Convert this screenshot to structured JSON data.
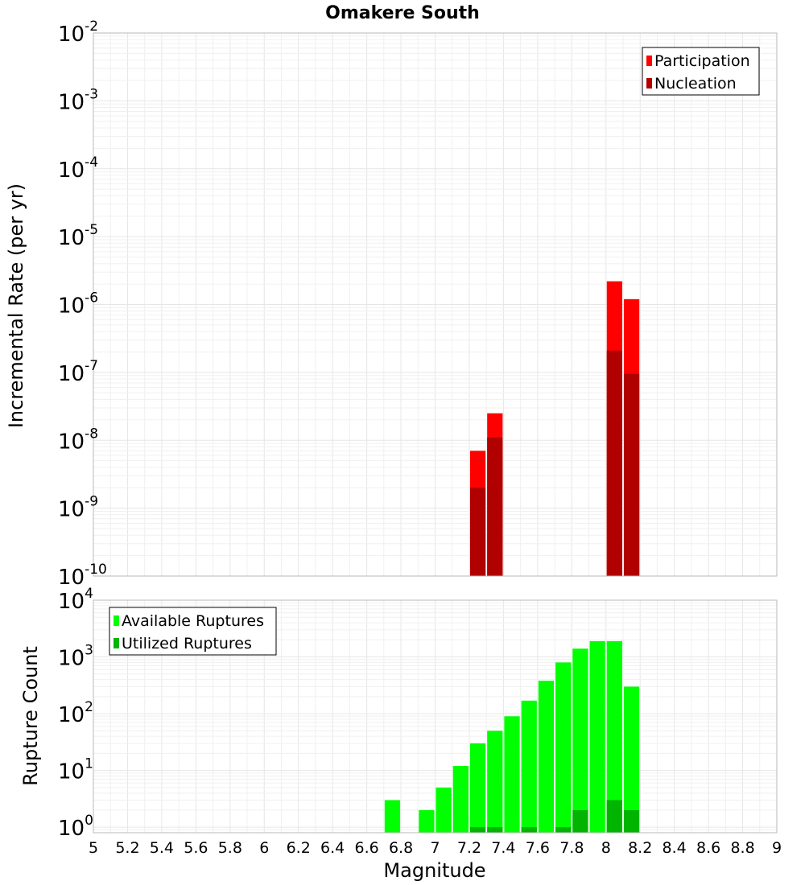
{
  "chart_data": [
    {
      "type": "bar",
      "title": "Omakere South",
      "xlabel": "",
      "ylabel": "Incremental Rate (per yr)",
      "y_scale": "log",
      "ylim": [
        1e-10,
        0.01
      ],
      "xlim": [
        5,
        9
      ],
      "y_tick_exponents": [
        "-10",
        "-9",
        "-8",
        "-7",
        "-6",
        "-5",
        "-4",
        "-3",
        "-2"
      ],
      "grid": true,
      "legend_position": "top-right",
      "bar_width": 0.1,
      "series": [
        {
          "name": "Participation",
          "color": "#ff0000",
          "points": [
            {
              "x": 7.25,
              "y": 7e-09
            },
            {
              "x": 7.35,
              "y": 2.5e-08
            },
            {
              "x": 8.05,
              "y": 2.2e-06
            },
            {
              "x": 8.15,
              "y": 1.2e-06
            }
          ]
        },
        {
          "name": "Nucleation",
          "color": "#b00000",
          "points": [
            {
              "x": 7.25,
              "y": 2e-09
            },
            {
              "x": 7.35,
              "y": 1.1e-08
            },
            {
              "x": 8.05,
              "y": 2.1e-07
            },
            {
              "x": 8.15,
              "y": 9.5e-08
            }
          ]
        }
      ]
    },
    {
      "type": "bar",
      "title": "",
      "xlabel": "Magnitude",
      "ylabel": "Rupture Count",
      "y_scale": "log",
      "ylim": [
        0.8,
        10000
      ],
      "xlim": [
        5,
        9
      ],
      "y_tick_exponents": [
        "0",
        "1",
        "2",
        "3",
        "4"
      ],
      "x_ticks": [
        "5",
        "5.2",
        "5.4",
        "5.6",
        "5.8",
        "6",
        "6.2",
        "6.4",
        "6.6",
        "6.8",
        "7",
        "7.2",
        "7.4",
        "7.6",
        "7.8",
        "8",
        "8.2",
        "8.4",
        "8.6",
        "8.8",
        "9"
      ],
      "grid": true,
      "legend_position": "top-left",
      "bar_width": 0.1,
      "series": [
        {
          "name": "Available Ruptures",
          "color": "#00ff00",
          "points": [
            {
              "x": 6.75,
              "y": 3
            },
            {
              "x": 6.95,
              "y": 2
            },
            {
              "x": 7.05,
              "y": 5
            },
            {
              "x": 7.15,
              "y": 12
            },
            {
              "x": 7.25,
              "y": 30
            },
            {
              "x": 7.35,
              "y": 50
            },
            {
              "x": 7.45,
              "y": 90
            },
            {
              "x": 7.55,
              "y": 170
            },
            {
              "x": 7.65,
              "y": 380
            },
            {
              "x": 7.75,
              "y": 800
            },
            {
              "x": 7.85,
              "y": 1400
            },
            {
              "x": 7.95,
              "y": 1900
            },
            {
              "x": 8.05,
              "y": 1900
            },
            {
              "x": 8.15,
              "y": 300
            }
          ]
        },
        {
          "name": "Utilized Ruptures",
          "color": "#00b400",
          "points": [
            {
              "x": 7.25,
              "y": 1
            },
            {
              "x": 7.35,
              "y": 1
            },
            {
              "x": 7.55,
              "y": 1
            },
            {
              "x": 7.75,
              "y": 1
            },
            {
              "x": 7.85,
              "y": 2
            },
            {
              "x": 8.05,
              "y": 3
            },
            {
              "x": 8.15,
              "y": 2
            }
          ]
        }
      ]
    }
  ]
}
